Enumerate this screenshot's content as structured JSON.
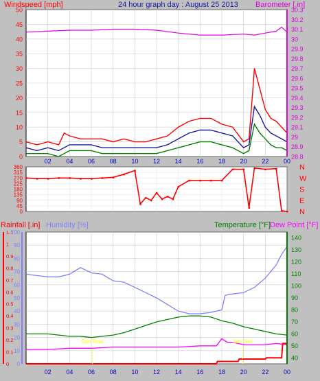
{
  "colors": {
    "bg": "#c0c0c0",
    "plot_bg": "#ffffff",
    "grid": "#aaaaaa",
    "wind": "#ff0000",
    "wind_avg": "#1a1aa0",
    "wind_low": "#008000",
    "baro": "#e000e0",
    "dir": "#ff0000",
    "rain": "#ff0000",
    "humidity": "#8080ff",
    "temperature": "#008000",
    "dewpoint": "#ff00ff",
    "time_axis": "#0000c0",
    "sun_label": "#ffff00"
  },
  "chart_data": [
    {
      "type": "line",
      "title": "24 hour graph day : August 25 2013",
      "left_label": "Windspeed [mph]",
      "right_label": "Barometer [.in]",
      "x_ticks": [
        "02",
        "04",
        "06",
        "08",
        "10",
        "12",
        "14",
        "16",
        "18",
        "20",
        "22",
        "00"
      ],
      "y_left_ticks": [
        "0",
        "5",
        "10",
        "15",
        "20",
        "25",
        "30",
        "35",
        "40",
        "45",
        "50"
      ],
      "y_right_ticks": [
        "28.8",
        "28.9",
        "29",
        "29.1",
        "29.2",
        "29.3",
        "29.4",
        "29.5",
        "29.6",
        "29.7",
        "29.8",
        "29.9",
        "30",
        "30.1",
        "30.2",
        "30.3"
      ],
      "ylim_left": [
        0,
        50
      ],
      "ylim_right": [
        28.8,
        30.3
      ],
      "xlim_hours": [
        0,
        24
      ],
      "grid": true,
      "series": [
        {
          "name": "Windspeed",
          "axis": "left",
          "color": "#ff0000",
          "x": [
            0,
            1,
            2,
            3,
            3.5,
            4,
            5,
            6,
            7,
            8,
            9,
            10,
            11,
            12,
            13,
            14,
            15,
            16,
            17,
            18,
            19,
            20,
            20.5,
            20.8,
            21,
            21.5,
            22,
            22.5,
            23,
            23.5,
            24
          ],
          "y": [
            5,
            4,
            5,
            4,
            8,
            7,
            6,
            6,
            6,
            5,
            6,
            5,
            5,
            6,
            7,
            10,
            12,
            13,
            13,
            11,
            10,
            5,
            6,
            20,
            30,
            23,
            16,
            13,
            12,
            10,
            8
          ]
        },
        {
          "name": "Wind average",
          "axis": "left",
          "color": "#1a1aa0",
          "x": [
            0,
            1,
            2,
            3,
            4,
            5,
            6,
            7,
            8,
            9,
            10,
            11,
            12,
            13,
            14,
            15,
            16,
            17,
            18,
            19,
            20,
            20.5,
            21,
            21.5,
            22,
            22.5,
            23,
            23.5,
            24
          ],
          "y": [
            3,
            2,
            3,
            2,
            4,
            4,
            4,
            3,
            3,
            3,
            3,
            3,
            3,
            4,
            6,
            8,
            9,
            9,
            8,
            7,
            3,
            4,
            17,
            14,
            10,
            8,
            7,
            6,
            5
          ]
        },
        {
          "name": "Wind low",
          "axis": "left",
          "color": "#008000",
          "x": [
            0,
            1,
            2,
            3,
            4,
            5,
            6,
            7,
            8,
            9,
            10,
            11,
            12,
            13,
            14,
            15,
            16,
            17,
            18,
            19,
            20,
            20.5,
            21,
            21.5,
            22,
            22.5,
            23,
            23.5,
            24
          ],
          "y": [
            1,
            1,
            1,
            0,
            2,
            2,
            2,
            1,
            1,
            1,
            1,
            1,
            1,
            2,
            3,
            4,
            5,
            5,
            4,
            3,
            1,
            2,
            11,
            8,
            6,
            4,
            3,
            3,
            2
          ]
        },
        {
          "name": "Barometer",
          "axis": "right",
          "color": "#e000e0",
          "x": [
            0,
            2,
            4,
            6,
            8,
            10,
            12,
            14,
            16,
            17,
            18,
            20,
            21,
            22,
            23,
            23.5,
            24
          ],
          "y": [
            30.07,
            30.08,
            30.09,
            30.09,
            30.1,
            30.1,
            30.09,
            30.06,
            30.04,
            30.04,
            30.04,
            30.05,
            30.04,
            30.06,
            30.08,
            30.12,
            30.07
          ]
        }
      ]
    },
    {
      "type": "scatter",
      "title": "Wind direction",
      "y_left_ticks": [
        "0",
        "45",
        "90",
        "135",
        "180",
        "225",
        "270",
        "315",
        "360"
      ],
      "y_right_labels": [
        "N",
        "W",
        "S",
        "E",
        "N"
      ],
      "ylim": [
        0,
        360
      ],
      "xlim_hours": [
        0,
        24
      ],
      "series": [
        {
          "name": "Wind direction",
          "color": "#ff0000",
          "x": [
            0,
            1,
            2,
            3,
            4,
            5,
            6,
            7,
            8,
            9,
            10,
            10.5,
            11,
            11.5,
            12,
            12.5,
            13,
            13.5,
            14,
            15,
            16,
            17,
            18,
            19,
            20,
            20.5,
            21,
            22,
            23,
            23.5,
            24
          ],
          "y": [
            270,
            265,
            265,
            270,
            270,
            265,
            265,
            270,
            275,
            300,
            330,
            60,
            110,
            90,
            150,
            100,
            120,
            100,
            200,
            250,
            250,
            250,
            250,
            340,
            340,
            30,
            350,
            340,
            345,
            5,
            0
          ]
        }
      ]
    },
    {
      "type": "line",
      "left_labels": [
        "Rainfall [.in]",
        "Humidity [%]"
      ],
      "right_labels": [
        "Temperature [°F]",
        "Dew Point [°F]"
      ],
      "x_ticks": [
        "02",
        "04",
        "06",
        "08",
        "10",
        "12",
        "14",
        "16",
        "18",
        "20",
        "22",
        "00"
      ],
      "rain_ticks": [
        "0",
        "0.1",
        "0.2",
        "0.3",
        "0.4",
        "0.5",
        "0.6",
        "0.7",
        "0.8",
        "0.9",
        "1",
        "1.1"
      ],
      "humidity_ticks": [
        "0",
        "10",
        "20",
        "30",
        "40",
        "50",
        "60",
        "70",
        "80",
        "90",
        "100"
      ],
      "temp_ticks": [
        "40",
        "50",
        "60",
        "70",
        "80",
        "90",
        "100",
        "110",
        "120",
        "130",
        "140"
      ],
      "ylim_rain": [
        0,
        1.1
      ],
      "ylim_humidity": [
        0,
        100
      ],
      "ylim_temp": [
        35,
        145
      ],
      "xlim_hours": [
        0,
        24
      ],
      "grid": true,
      "annotations": [
        "Sun Rise",
        "Sun Set"
      ],
      "series": [
        {
          "name": "Humidity",
          "axis": "humidity",
          "color": "#8080ff",
          "x": [
            0,
            1,
            2,
            3,
            4,
            5,
            6,
            7,
            8,
            9,
            10,
            11,
            12,
            13,
            14,
            15,
            16,
            17,
            18,
            18.3,
            19,
            20,
            21,
            22,
            23,
            23.5,
            24
          ],
          "y": [
            68,
            67,
            66,
            66,
            68,
            73,
            69,
            68,
            63,
            62,
            58,
            54,
            50,
            45,
            40,
            38,
            38,
            39,
            41,
            52,
            53,
            54,
            58,
            65,
            75,
            83,
            89
          ]
        },
        {
          "name": "Temperature",
          "axis": "temp",
          "color": "#008000",
          "x": [
            0,
            1,
            2,
            3,
            4,
            5,
            6,
            7,
            8,
            9,
            10,
            11,
            12,
            13,
            14,
            15,
            16,
            17,
            18,
            19,
            20,
            21,
            22,
            23,
            24
          ],
          "y": [
            60,
            60,
            60,
            59,
            58,
            58,
            57,
            58,
            59,
            61,
            64,
            67,
            70,
            72,
            74,
            75,
            75,
            74,
            71,
            69,
            66,
            64,
            62,
            60,
            59
          ]
        },
        {
          "name": "Dew Point",
          "axis": "temp",
          "color": "#ff00ff",
          "x": [
            0,
            2,
            4,
            6,
            8,
            10,
            12,
            14,
            16,
            17.5,
            18,
            18.5,
            19,
            20,
            21,
            22,
            23,
            24
          ],
          "y": [
            47,
            47,
            48,
            48,
            49,
            49,
            49,
            49,
            50,
            50,
            56,
            53,
            53,
            51,
            51,
            51,
            52,
            51
          ]
        },
        {
          "name": "Rainfall",
          "axis": "rain",
          "color": "#ff0000",
          "x": [
            0,
            17.5,
            17.6,
            19.5,
            19.6,
            22,
            22.1,
            23.5,
            23.6,
            24
          ],
          "y": [
            0,
            0,
            0.02,
            0.02,
            0.04,
            0.04,
            0.05,
            0.05,
            0.17,
            0.17
          ]
        }
      ]
    }
  ]
}
